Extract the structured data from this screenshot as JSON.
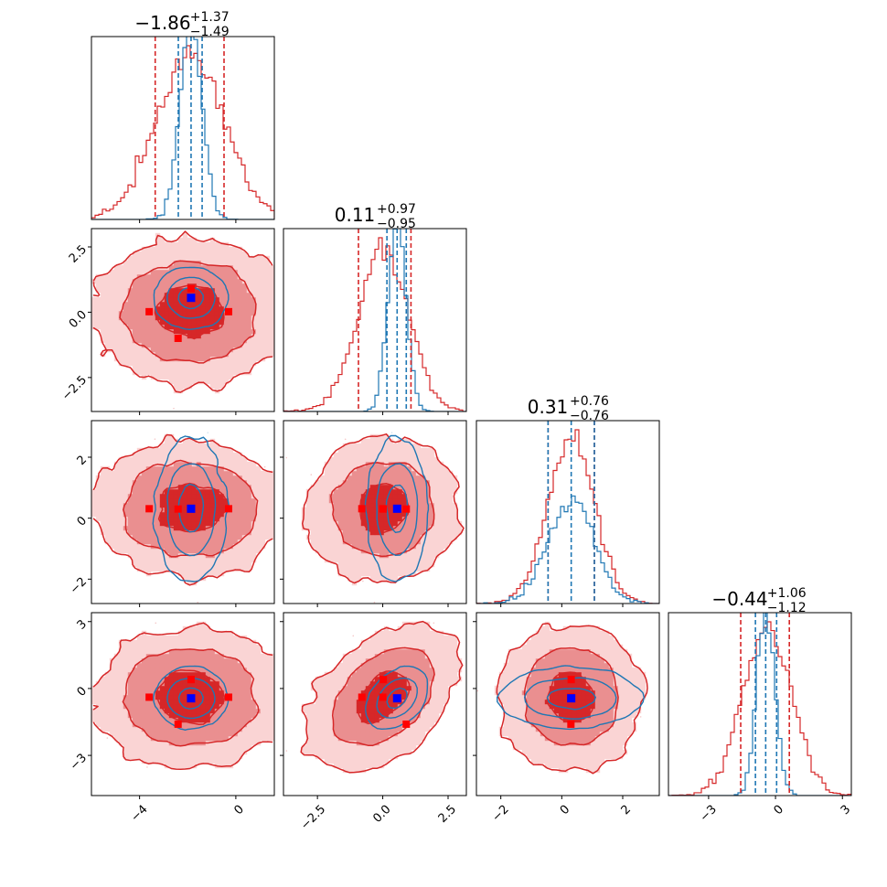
{
  "chart_data": {
    "type": "corner",
    "params": 4,
    "colors": {
      "red": "#d62728",
      "blue": "#1f77b4",
      "red_mid": "#ea8f90",
      "red_light": "#fad4d4",
      "marker_blue": "#0000ff",
      "marker_red": "#ff0000"
    },
    "titles": [
      {
        "median": "−1.86",
        "plus": "+1.37",
        "minus": "−1.49"
      },
      {
        "median": "0.11",
        "plus": "+0.97",
        "minus": "−0.95"
      },
      {
        "median": "0.31",
        "plus": "+0.76",
        "minus": "−0.76"
      },
      {
        "median": "−0.44",
        "plus": "+1.06",
        "minus": "−1.12"
      }
    ],
    "axes": [
      {
        "range": [
          -6.0,
          1.6
        ],
        "ticks": [
          -4,
          0
        ],
        "tick_labels": [
          "−4",
          "0"
        ]
      },
      {
        "range": [
          -3.8,
          3.2
        ],
        "ticks": [
          -2.5,
          0.0,
          2.5
        ],
        "tick_labels": [
          "−2.5",
          "0.0",
          "2.5"
        ]
      },
      {
        "range": [
          -2.8,
          3.2
        ],
        "ticks": [
          -2,
          0,
          2
        ],
        "tick_labels": [
          "−2",
          "0",
          "2"
        ]
      },
      {
        "range": [
          -4.8,
          3.4
        ],
        "ticks": [
          -3,
          0,
          3
        ],
        "tick_labels": [
          "−3",
          "0",
          "3"
        ]
      }
    ],
    "red_samples": {
      "mean": [
        -1.86,
        0.02,
        0.31,
        -0.39
      ],
      "std": [
        1.42,
        0.96,
        0.76,
        1.09
      ],
      "quantiles": [
        [
          -3.35,
          -0.49
        ],
        [
          -0.93,
          1.08
        ],
        [
          -0.45,
          1.07
        ],
        [
          -1.56,
          0.62
        ]
      ]
    },
    "blue_samples": {
      "mean": [
        -1.86,
        0.55,
        0.31,
        -0.44
      ],
      "std": [
        0.45,
        0.35,
        0.76,
        0.4
      ],
      "quantiles": [
        [
          -2.39,
          -1.4
        ],
        [
          0.16,
          0.9
        ],
        [
          -0.45,
          1.07
        ],
        [
          -0.9,
          0.05
        ]
      ]
    },
    "correlations": {
      "1-0": 0.05,
      "2-0": 0.0,
      "2-1": 0.0,
      "3-0": 0.05,
      "3-1": 0.45,
      "3-2": 0.0
    },
    "truth_blue": [
      -1.86,
      0.55,
      0.31,
      -0.44
    ],
    "red_markers": [
      {
        "param": 0,
        "values": [
          -3.6,
          -0.3,
          -2.4,
          -1.9
        ]
      },
      {
        "param": 1,
        "values": [
          -0.8,
          0.0,
          0.9,
          -1.0
        ]
      },
      {
        "param": 2,
        "values": [
          0.3,
          0.3,
          0.3,
          0.3
        ]
      },
      {
        "param": 3,
        "values": [
          -0.3,
          -0.6,
          0.4,
          -1.6
        ]
      }
    ]
  }
}
